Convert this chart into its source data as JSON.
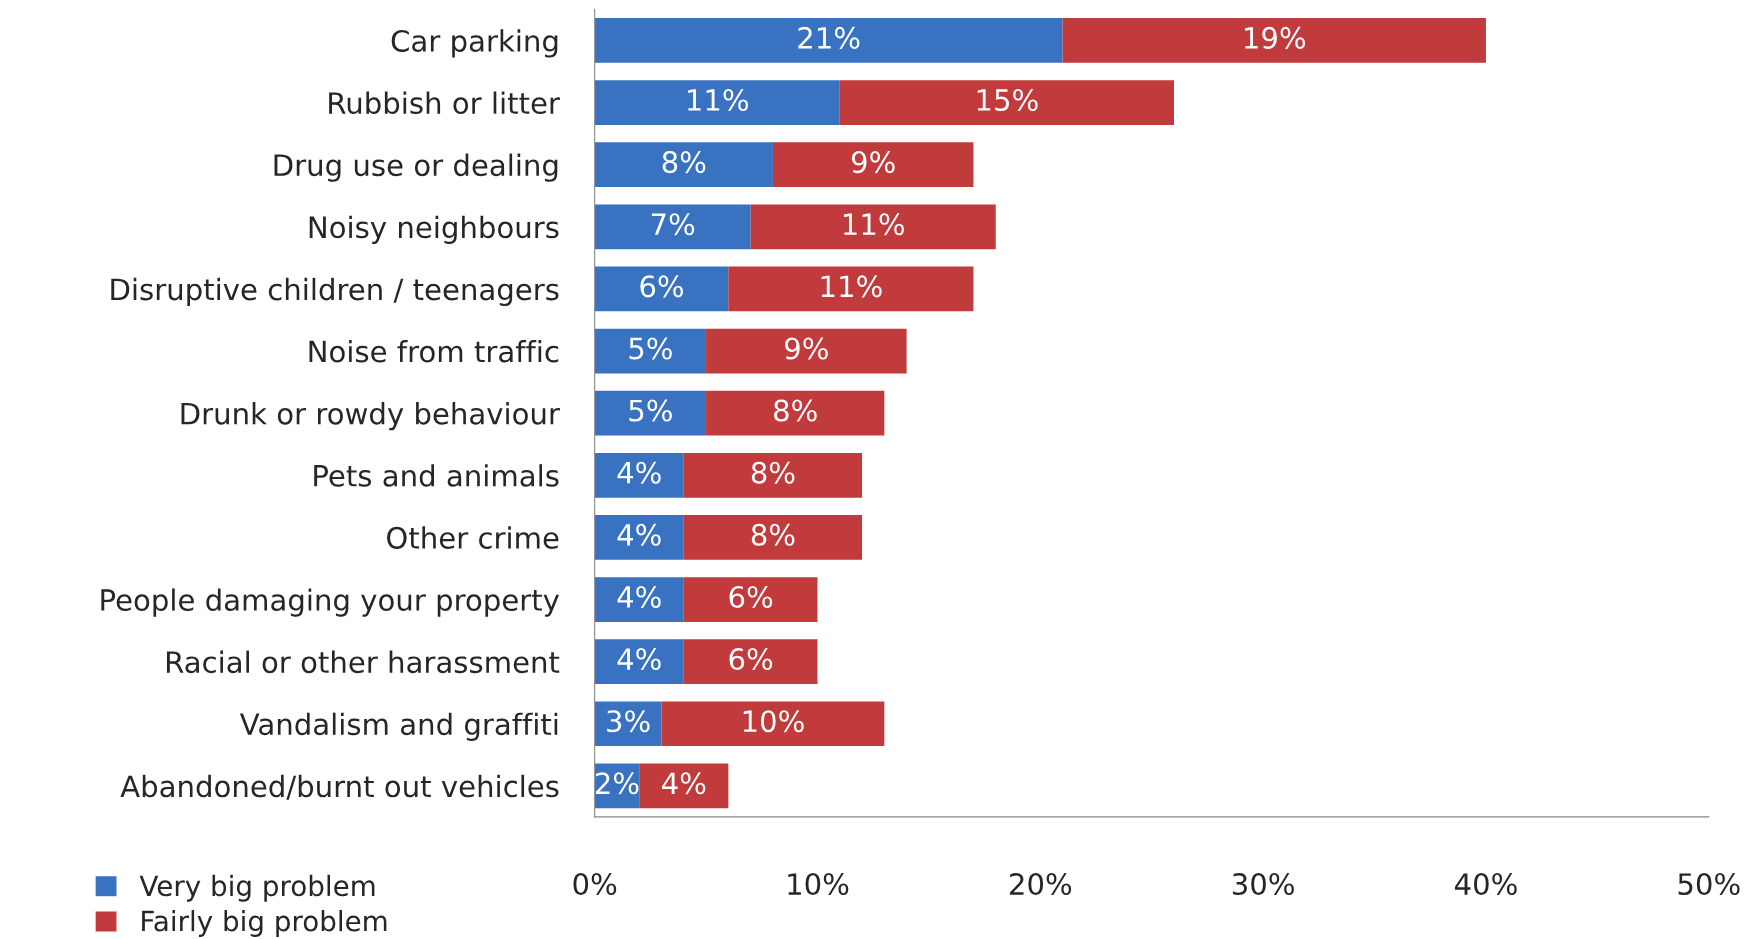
{
  "chart_data": {
    "type": "bar",
    "orientation": "horizontal",
    "stacked": true,
    "categories": [
      "Car parking",
      "Rubbish or litter",
      "Drug use or dealing",
      "Noisy neighbours",
      "Disruptive children / teenagers",
      "Noise from traffic",
      "Drunk or rowdy behaviour",
      "Pets and animals",
      "Other crime",
      "People damaging your property",
      "Racial or other harassment",
      "Vandalism and graffiti",
      "Abandoned/burnt out vehicles"
    ],
    "series": [
      {
        "name": "Very big problem",
        "color": "#3a72c2",
        "values": [
          21,
          11,
          8,
          7,
          6,
          5,
          5,
          4,
          4,
          4,
          4,
          3,
          2
        ],
        "value_labels": [
          "21%",
          "11%",
          "8%",
          "7%",
          "6%",
          "5%",
          "5%",
          "4%",
          "4%",
          "4%",
          "4%",
          "3%",
          "2%"
        ]
      },
      {
        "name": "Fairly big problem",
        "color": "#c13a3c",
        "values": [
          19,
          15,
          9,
          11,
          11,
          9,
          8,
          8,
          8,
          6,
          6,
          10,
          4
        ],
        "value_labels": [
          "19%",
          "15%",
          "9%",
          "11%",
          "11%",
          "9%",
          "8%",
          "8%",
          "8%",
          "6%",
          "6%",
          "10%",
          "4%"
        ]
      }
    ],
    "xlim": [
      0,
      50
    ],
    "xticks": [
      {
        "value": 0,
        "label": "0%"
      },
      {
        "value": 10,
        "label": "10%"
      },
      {
        "value": 20,
        "label": "20%"
      },
      {
        "value": 30,
        "label": "30%"
      },
      {
        "value": 40,
        "label": "40%"
      },
      {
        "value": 50,
        "label": "50%"
      }
    ],
    "legend": "bottom left",
    "grid": false
  }
}
